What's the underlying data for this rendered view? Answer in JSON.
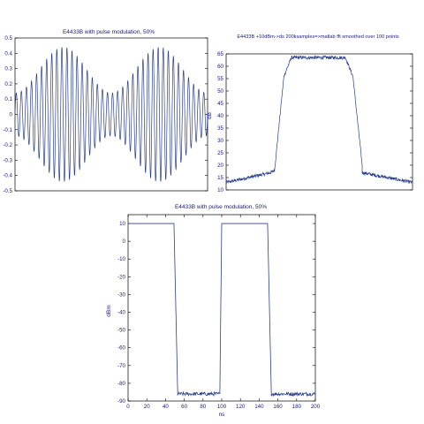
{
  "colors": {
    "trace": "#2b3f8c",
    "axis": "#000000",
    "text": "#1a1a7a",
    "background": "#ffffff"
  },
  "chart_data": [
    {
      "type": "line",
      "title": "E4433B with pulse modulation, 50%",
      "xlabel": "",
      "ylabel": "",
      "xlim": [
        0,
        200
      ],
      "ylim": [
        -0.5,
        0.5
      ],
      "yticks": [
        "0.5",
        "0.4",
        "0.3",
        "0.2",
        "0.1",
        "0",
        "-0.1",
        "-0.2",
        "-0.3",
        "-0.4",
        "-0.5"
      ],
      "xticks": [],
      "grid": false,
      "series": [
        {
          "description_free": true,
          "carrier_cycles": 38,
          "envelope": {
            "mean": 0.29,
            "swing": 0.15,
            "periods": 2,
            "phase": "peaks-at-25%-and-75%"
          },
          "peak_max": 0.44,
          "peak_min": 0.14
        }
      ]
    },
    {
      "type": "line",
      "title": "E4433B +10dBm->ds 200ksamples=>matlab fft smoothed over 100 points",
      "xlabel": "",
      "ylabel": "dB",
      "xlim": [
        0,
        200
      ],
      "ylim": [
        10,
        65
      ],
      "yticks": [
        "65",
        "60",
        "55",
        "50",
        "45",
        "40",
        "35",
        "30",
        "25",
        "20",
        "15",
        "10"
      ],
      "xticks": [],
      "grid": false,
      "series": [
        {
          "segments": [
            {
              "x": [
                0,
                48
              ],
              "y": [
                13,
                17
              ]
            },
            {
              "x": [
                48,
                52
              ],
              "y": [
                17,
                18
              ]
            },
            {
              "x": [
                52,
                62
              ],
              "y": [
                18,
                56
              ]
            },
            {
              "x": [
                62,
                70
              ],
              "y": [
                56,
                63.5
              ]
            },
            {
              "x": [
                70,
                128
              ],
              "y": [
                63.5,
                63.5
              ]
            },
            {
              "x": [
                128,
                136
              ],
              "y": [
                63.5,
                56
              ]
            },
            {
              "x": [
                136,
                146
              ],
              "y": [
                56,
                20
              ]
            },
            {
              "x": [
                146,
                200
              ],
              "y": [
                17,
                13
              ]
            }
          ],
          "noise": 0.7
        }
      ]
    },
    {
      "type": "line",
      "title": "E4433B with pulse modulation, 50%",
      "xlabel": "ns",
      "ylabel": "dBm",
      "xlim": [
        0,
        200
      ],
      "ylim": [
        -90,
        15
      ],
      "xticks": [
        "0",
        "20",
        "40",
        "60",
        "80",
        "100",
        "120",
        "140",
        "160",
        "180",
        "200"
      ],
      "yticks": [
        "10",
        "0",
        "-10",
        "-20",
        "-30",
        "-40",
        "-50",
        "-60",
        "-70",
        "-80",
        "-90"
      ],
      "grid": false,
      "series": [
        {
          "points": [
            [
              0,
              10
            ],
            [
              49,
              10
            ],
            [
              53,
              -86
            ],
            [
              98,
              -86
            ],
            [
              100,
              10
            ],
            [
              149,
              10
            ],
            [
              153,
              -86
            ],
            [
              200,
              -86
            ]
          ],
          "noise_on_low": 1.0
        }
      ]
    }
  ]
}
